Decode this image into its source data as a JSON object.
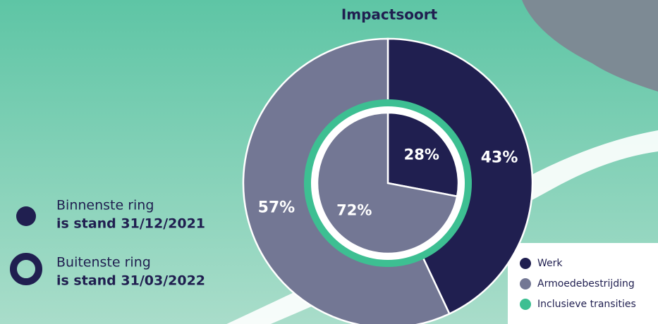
{
  "chart_data": {
    "type": "pie",
    "title": "Impactsoort",
    "categories": [
      "Werk",
      "Armoedebestrijding",
      "Inclusieve transities"
    ],
    "colors": [
      "#201f50",
      "#737794",
      "#3dbf92"
    ],
    "rings": [
      {
        "name": "Binnenste ring",
        "detail": "is stand 31/12/2021",
        "values": [
          28,
          72
        ],
        "value_labels": [
          "28%",
          "72%"
        ]
      },
      {
        "name": "Buitenste ring",
        "detail": "is stand 31/03/2022",
        "values": [
          43,
          57
        ],
        "value_labels": [
          "43%",
          "57%"
        ]
      }
    ]
  }
}
